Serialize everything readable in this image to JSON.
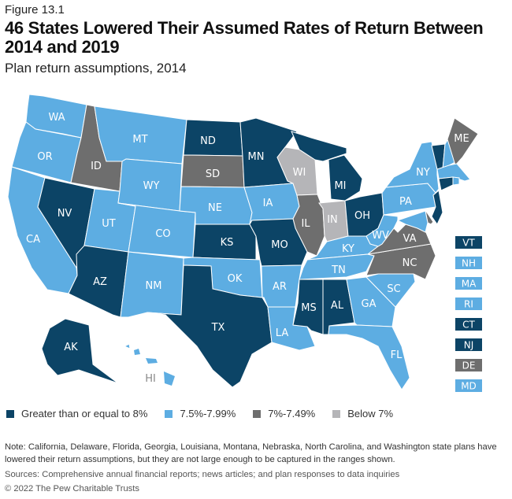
{
  "figure_label": "Figure 13.1",
  "title": "46 States Lowered Their Assumed Rates of Return Between 2014 and 2019",
  "subtitle": "Plan return assumptions, 2014",
  "categories": [
    {
      "key": "ge8",
      "label": "Greater than or equal to 8%",
      "color": "#0c4466"
    },
    {
      "key": "75",
      "label": "7.5%-7.99%",
      "color": "#5dade2"
    },
    {
      "key": "70",
      "label": "7%-7.49%",
      "color": "#6e6e6e"
    },
    {
      "key": "lt7",
      "label": "Below 7%",
      "color": "#b5b5b8"
    }
  ],
  "states": {
    "WA": "75",
    "OR": "75",
    "CA": "75",
    "ID": "70",
    "NV": "ge8",
    "MT": "75",
    "WY": "75",
    "UT": "75",
    "AZ": "ge8",
    "CO": "75",
    "NM": "75",
    "ND": "ge8",
    "SD": "70",
    "NE": "75",
    "KS": "ge8",
    "OK": "75",
    "TX": "ge8",
    "MN": "ge8",
    "IA": "75",
    "MO": "ge8",
    "AR": "75",
    "LA": "75",
    "WI": "lt7",
    "IL": "70",
    "IN": "lt7",
    "MI": "ge8",
    "OH": "ge8",
    "KY": "75",
    "TN": "75",
    "MS": "ge8",
    "AL": "ge8",
    "GA": "75",
    "FL": "75",
    "SC": "75",
    "NC": "70",
    "VA": "70",
    "WV": "75",
    "PA": "75",
    "NY": "75",
    "ME": "70",
    "VT": "ge8",
    "NH": "75",
    "MA": "75",
    "RI": "75",
    "CT": "ge8",
    "NJ": "ge8",
    "DE": "70",
    "MD": "75",
    "AK": "ge8",
    "HI": "75"
  },
  "small_state_boxes": [
    "VT",
    "NH",
    "MA",
    "RI",
    "CT",
    "NJ",
    "DE",
    "MD"
  ],
  "note": "Note: California, Delaware, Florida, Georgia, Louisiana, Montana, Nebraska, North Carolina, and Washington state plans have lowered their return assumptions, but they are not large enough to be captured in the ranges shown.",
  "sources": "Sources: Comprehensive annual financial reports; news articles; and plan responses to data inquiries",
  "copyright": "© 2022 The Pew Charitable Trusts"
}
